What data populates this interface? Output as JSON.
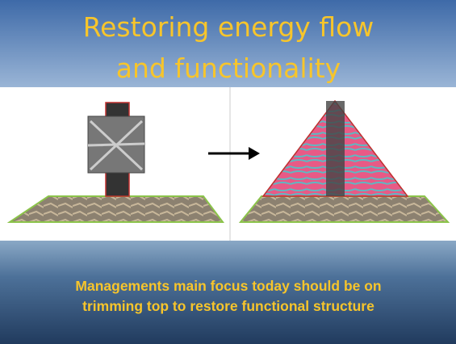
{
  "title": {
    "lines": [
      "Restoring energy flow",
      "and functionality"
    ]
  },
  "caption": {
    "lines": [
      "Managements main focus today should be on",
      "trimming top to restore functional structure"
    ]
  }
}
